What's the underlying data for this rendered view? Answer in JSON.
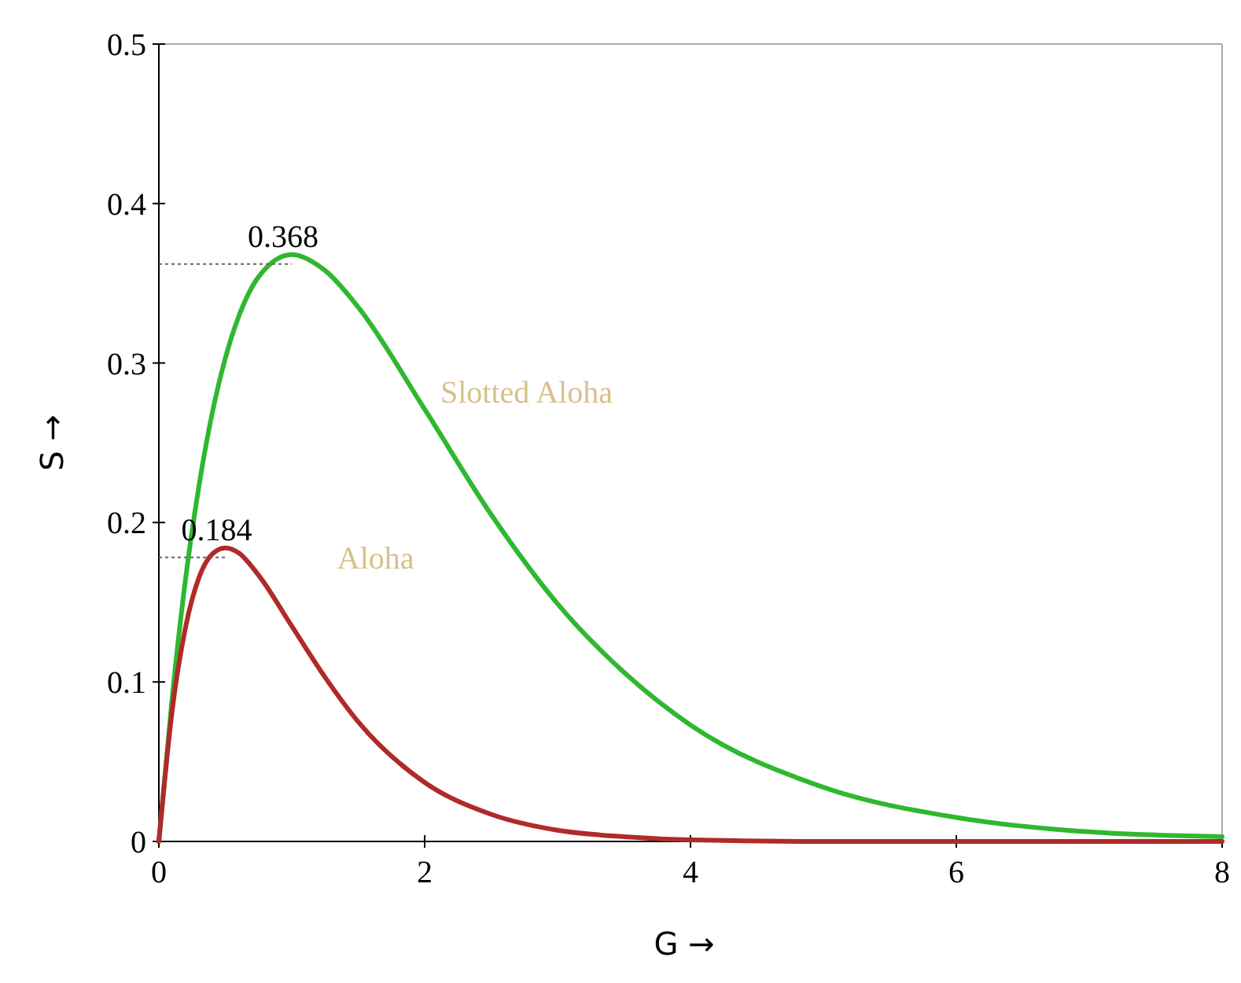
{
  "chart_data": {
    "type": "line",
    "xlabel": "G →",
    "ylabel": "S →",
    "x": [
      0,
      0.1,
      0.2,
      0.3,
      0.4,
      0.5,
      0.6,
      0.75,
      1,
      1.25,
      1.5,
      2,
      2.5,
      3,
      3.5,
      4,
      5,
      6,
      7,
      8
    ],
    "series": [
      {
        "name": "Slotted Aloha",
        "color": "#2fb82f",
        "values": [
          0,
          0.09,
          0.164,
          0.222,
          0.268,
          0.303,
          0.329,
          0.354,
          0.368,
          0.358,
          0.335,
          0.271,
          0.205,
          0.149,
          0.106,
          0.073,
          0.034,
          0.015,
          0.006,
          0.003
        ]
      },
      {
        "name": "Aloha",
        "color": "#b02a2a",
        "values": [
          0,
          0.082,
          0.134,
          0.165,
          0.18,
          0.184,
          0.181,
          0.167,
          0.135,
          0.103,
          0.075,
          0.037,
          0.017,
          0.007,
          0.003,
          0.001,
          0,
          0,
          0,
          0
        ]
      }
    ],
    "xlim": [
      0,
      8
    ],
    "xticks": [
      0,
      2,
      4,
      6,
      8
    ],
    "ylim": [
      0,
      0.5
    ],
    "yticks": [
      0,
      0.1,
      0.2,
      0.3,
      0.4,
      0.5
    ],
    "annotations": [
      {
        "text": "0.368",
        "x": 1,
        "y": 0.368
      },
      {
        "text": "0.184",
        "x": 0.5,
        "y": 0.184
      }
    ],
    "grid": false,
    "marker": "none",
    "line_style": "solid"
  }
}
